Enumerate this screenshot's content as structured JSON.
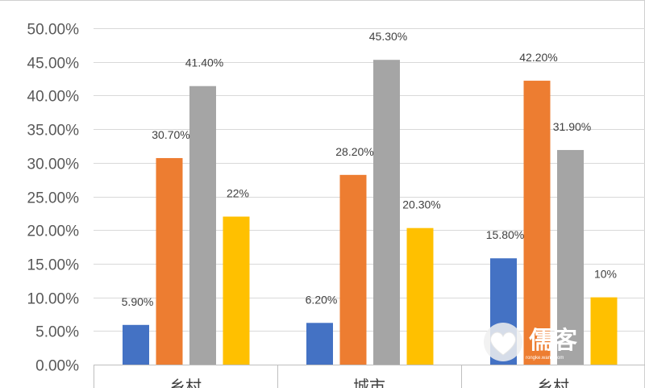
{
  "chart_data": {
    "type": "bar",
    "categories": [
      "乡村",
      "城市",
      "乡村"
    ],
    "series": [
      {
        "values": [
          5.9,
          6.2,
          15.8
        ],
        "labels": [
          "5.90%",
          "6.20%",
          "15.80%"
        ]
      },
      {
        "values": [
          30.7,
          28.2,
          42.2
        ],
        "labels": [
          "30.70%",
          "28.20%",
          "42.20%"
        ]
      },
      {
        "values": [
          41.4,
          45.3,
          31.9
        ],
        "labels": [
          "41.40%",
          "45.30%",
          "31.90%"
        ]
      },
      {
        "values": [
          22.0,
          20.3,
          10.0
        ],
        "labels": [
          "22%",
          "20.30%",
          "10%"
        ]
      }
    ],
    "colors": [
      "#4472c4",
      "#ed7d31",
      "#a5a5a5",
      "#ffc000"
    ],
    "ylim": [
      0,
      50
    ],
    "yticks": [
      "0.00%",
      "5.00%",
      "10.00%",
      "15.00%",
      "20.00%",
      "25.00%",
      "30.00%",
      "35.00%",
      "40.00%",
      "45.00%",
      "50.00%"
    ],
    "grid": true,
    "legend": "none"
  },
  "watermark": {
    "text": "儒客",
    "subtext": "rongke.wang.com",
    "icon": "heart-icon"
  }
}
